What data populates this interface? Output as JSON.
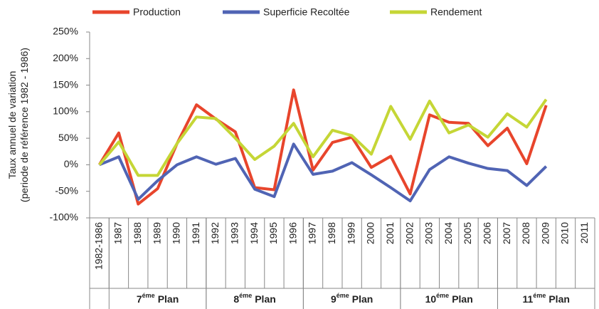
{
  "chart_data": {
    "type": "line",
    "ylabel": [
      "Taux annuel de variation",
      "(periode de référence 1982 - 1986)"
    ],
    "categories": [
      "1982-1986",
      "1987",
      "1988",
      "1989",
      "1990",
      "1991",
      "1992",
      "1993",
      "1994",
      "1995",
      "1996",
      "1997",
      "1998",
      "1999",
      "2000",
      "2001",
      "2002",
      "2003",
      "2004",
      "2005",
      "2006",
      "2007",
      "2008",
      "2009",
      "2010",
      "2011"
    ],
    "series": [
      {
        "name": "Production",
        "color": "#e8452c",
        "values": [
          0,
          60,
          -74,
          -45,
          40,
          113,
          86,
          62,
          -43,
          -47,
          141,
          -10,
          42,
          52,
          -5,
          16,
          -55,
          94,
          80,
          78,
          36,
          69,
          2,
          112,
          null,
          null
        ]
      },
      {
        "name": "Superficie Recoltée",
        "color": "#5064b4",
        "values": [
          0,
          15,
          -65,
          -30,
          0,
          15,
          1,
          12,
          -46,
          -60,
          39,
          -18,
          -12,
          4,
          -19,
          -43,
          -68,
          -9,
          15,
          3,
          -7,
          -11,
          -39,
          -3,
          null,
          null
        ]
      },
      {
        "name": "Rendement",
        "color": "#c5d636",
        "values": [
          0,
          43,
          -20,
          -20,
          40,
          90,
          87,
          50,
          10,
          35,
          78,
          15,
          65,
          55,
          20,
          110,
          48,
          120,
          60,
          75,
          52,
          96,
          71,
          123,
          null,
          null
        ]
      }
    ],
    "ylim": [
      -100,
      250
    ],
    "yticks": [
      {
        "value": -100,
        "label": "-100%"
      },
      {
        "value": -50,
        "label": "-50%"
      },
      {
        "value": 0,
        "label": "0%"
      },
      {
        "value": 50,
        "label": "50%"
      },
      {
        "value": 100,
        "label": "100%"
      },
      {
        "value": 150,
        "label": "150%"
      },
      {
        "value": 200,
        "label": "200%"
      },
      {
        "value": 250,
        "label": "250%"
      }
    ],
    "groups": [
      {
        "number": "7",
        "suffix": "éme",
        "word": "Plan",
        "from": "1987",
        "to": "1991"
      },
      {
        "number": "8",
        "suffix": "éme",
        "word": "Plan",
        "from": "1992",
        "to": "1996"
      },
      {
        "number": "9",
        "suffix": "éme",
        "word": "Plan",
        "from": "1997",
        "to": "2001"
      },
      {
        "number": "10",
        "suffix": "éme",
        "word": "Plan",
        "from": "2002",
        "to": "2006"
      },
      {
        "number": "11",
        "suffix": "éme",
        "word": "Plan",
        "from": "2007",
        "to": "2011"
      }
    ],
    "legend": "top"
  }
}
